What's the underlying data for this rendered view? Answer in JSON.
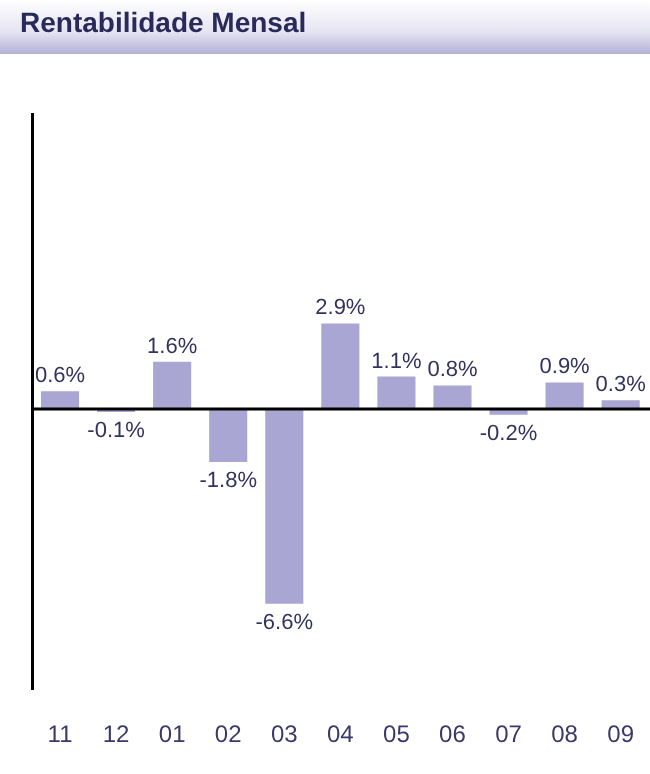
{
  "chart_data": {
    "type": "bar",
    "title": "Rentabilidade Mensal",
    "categories": [
      "11",
      "12",
      "01",
      "02",
      "03",
      "04",
      "05",
      "06",
      "07",
      "08",
      "09"
    ],
    "values": [
      0.6,
      -0.1,
      1.6,
      -1.8,
      -6.6,
      2.9,
      1.1,
      0.8,
      -0.2,
      0.9,
      0.3
    ],
    "value_labels": [
      "0.6%",
      "-0.1%",
      "1.6%",
      "-1.8%",
      "-6.6%",
      "2.9%",
      "1.1%",
      "0.8%",
      "-0.2%",
      "0.9%",
      "0.3%"
    ],
    "color": "#a9a6d3",
    "grid": false,
    "legend": false,
    "tick_labels": "x"
  }
}
